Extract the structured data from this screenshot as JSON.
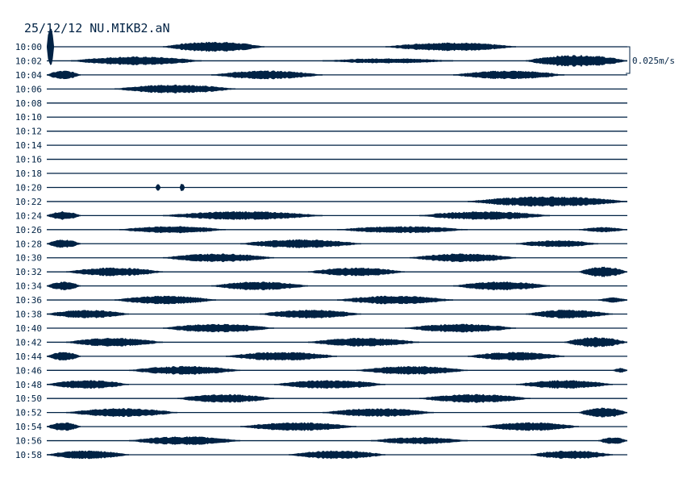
{
  "chart_data": {
    "type": "line",
    "title": "25/12/12  NU.MIKB2.aN",
    "scale_label": "0.025m/s",
    "scale_value_mps": 0.025,
    "line_duration_s": 120,
    "color": "#002244",
    "rows": [
      {
        "label": "10:00",
        "bursts": [
          [
            0,
            1.5,
            0.02
          ],
          [
            24,
            45,
            0.0044
          ],
          [
            70,
            97,
            0.0037
          ]
        ]
      },
      {
        "label": "10:02",
        "bursts": [
          [
            5,
            32,
            0.0037
          ],
          [
            57,
            84,
            0.0022
          ],
          [
            99,
            120,
            0.0051
          ]
        ]
      },
      {
        "label": "10:04",
        "bursts": [
          [
            0,
            7,
            0.0037
          ],
          [
            34,
            57,
            0.0037
          ],
          [
            84,
            107,
            0.0037
          ]
        ]
      },
      {
        "label": "10:06",
        "bursts": [
          [
            14,
            39,
            0.0037
          ]
        ]
      },
      {
        "label": "10:08",
        "bursts": []
      },
      {
        "label": "10:10",
        "bursts": []
      },
      {
        "label": "10:12",
        "bursts": []
      },
      {
        "label": "10:14",
        "bursts": []
      },
      {
        "label": "10:16",
        "bursts": []
      },
      {
        "label": "10:18",
        "bursts": []
      },
      {
        "label": "10:20",
        "bursts": [
          [
            22.5,
            23.5,
            0.003
          ],
          [
            27.5,
            28.5,
            0.004
          ]
        ]
      },
      {
        "label": "10:22",
        "bursts": [
          [
            87,
            120,
            0.0044
          ]
        ]
      },
      {
        "label": "10:24",
        "bursts": [
          [
            0,
            7,
            0.0037
          ],
          [
            24,
            57,
            0.0037
          ],
          [
            77,
            104,
            0.0037
          ]
        ]
      },
      {
        "label": "10:26",
        "bursts": [
          [
            15,
            37,
            0.003
          ],
          [
            60,
            87,
            0.003
          ],
          [
            110,
            120,
            0.0022
          ]
        ]
      },
      {
        "label": "10:28",
        "bursts": [
          [
            0,
            7,
            0.0037
          ],
          [
            40,
            65,
            0.0037
          ],
          [
            97,
            114,
            0.003
          ]
        ]
      },
      {
        "label": "10:30",
        "bursts": [
          [
            24,
            47,
            0.0037
          ],
          [
            75,
            97,
            0.0037
          ]
        ]
      },
      {
        "label": "10:32",
        "bursts": [
          [
            4,
            24,
            0.0037
          ],
          [
            54,
            74,
            0.0037
          ],
          [
            110,
            120,
            0.0044
          ]
        ]
      },
      {
        "label": "10:34",
        "bursts": [
          [
            0,
            7,
            0.0037
          ],
          [
            34,
            54,
            0.0037
          ],
          [
            84,
            104,
            0.0037
          ]
        ]
      },
      {
        "label": "10:36",
        "bursts": [
          [
            14,
            35,
            0.0037
          ],
          [
            60,
            84,
            0.0037
          ],
          [
            114,
            120,
            0.0022
          ]
        ]
      },
      {
        "label": "10:38",
        "bursts": [
          [
            0,
            17,
            0.0037
          ],
          [
            44,
            65,
            0.0037
          ],
          [
            99,
            117,
            0.0037
          ]
        ]
      },
      {
        "label": "10:40",
        "bursts": [
          [
            24,
            47,
            0.0037
          ],
          [
            74,
            97,
            0.0037
          ]
        ]
      },
      {
        "label": "10:42",
        "bursts": [
          [
            4,
            24,
            0.0037
          ],
          [
            54,
            77,
            0.0037
          ],
          [
            107,
            120,
            0.0044
          ]
        ]
      },
      {
        "label": "10:44",
        "bursts": [
          [
            0,
            7,
            0.0037
          ],
          [
            37,
            60,
            0.0037
          ],
          [
            87,
            107,
            0.0037
          ]
        ]
      },
      {
        "label": "10:46",
        "bursts": [
          [
            17,
            40,
            0.0037
          ],
          [
            64,
            87,
            0.0037
          ],
          [
            117,
            120,
            0.002
          ]
        ]
      },
      {
        "label": "10:48",
        "bursts": [
          [
            0,
            17,
            0.0037
          ],
          [
            47,
            70,
            0.0037
          ],
          [
            97,
            117,
            0.0037
          ]
        ]
      },
      {
        "label": "10:50",
        "bursts": [
          [
            27,
            47,
            0.0037
          ],
          [
            77,
            100,
            0.0037
          ]
        ]
      },
      {
        "label": "10:52",
        "bursts": [
          [
            4,
            27,
            0.0037
          ],
          [
            57,
            80,
            0.0037
          ],
          [
            110,
            120,
            0.0044
          ]
        ]
      },
      {
        "label": "10:54",
        "bursts": [
          [
            0,
            7,
            0.0037
          ],
          [
            40,
            64,
            0.0037
          ],
          [
            90,
            110,
            0.0037
          ]
        ]
      },
      {
        "label": "10:56",
        "bursts": [
          [
            17,
            40,
            0.0037
          ],
          [
            67,
            87,
            0.003
          ],
          [
            114,
            120,
            0.003
          ]
        ]
      },
      {
        "label": "10:58",
        "bursts": [
          [
            0,
            17,
            0.0037
          ],
          [
            50,
            70,
            0.0037
          ],
          [
            100,
            117,
            0.0037
          ]
        ]
      }
    ]
  }
}
